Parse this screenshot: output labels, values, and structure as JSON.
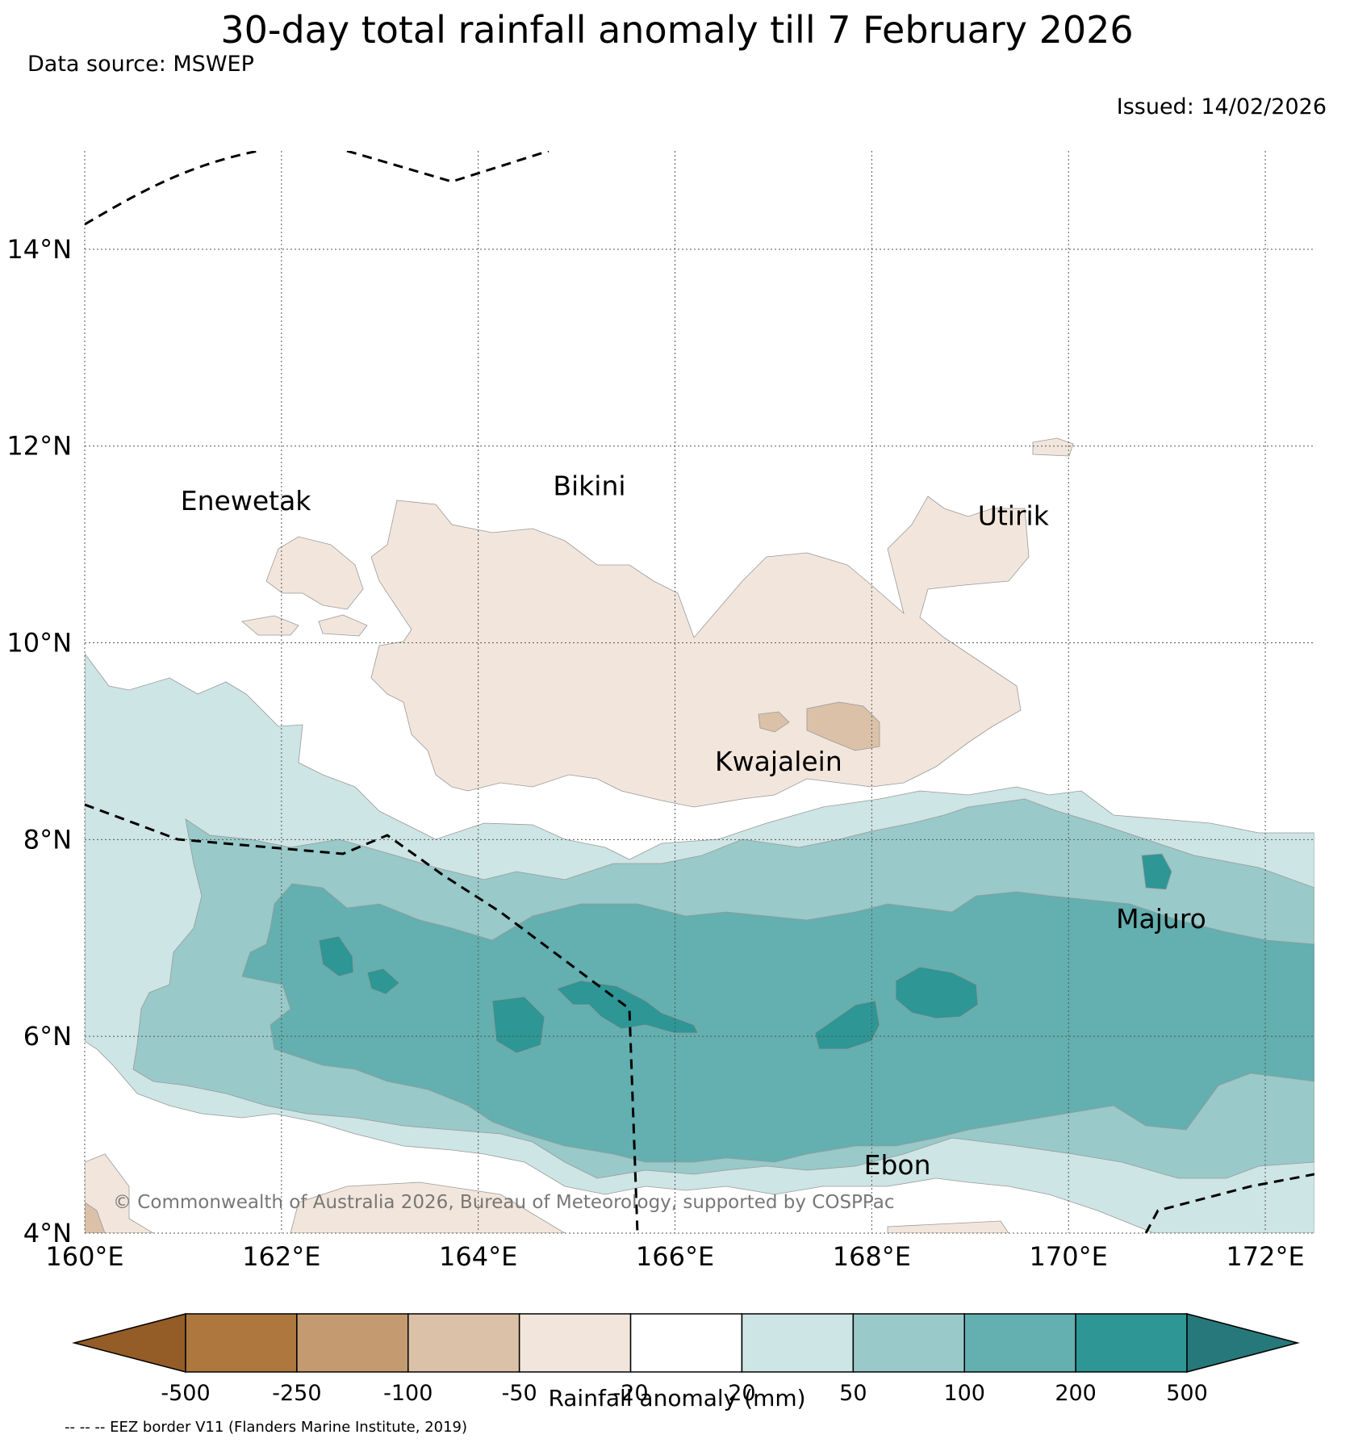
{
  "title": "30-day total rainfall anomaly till 7 February 2026",
  "source": "Data source: MSWEP",
  "issued": "Issued: 14/02/2026",
  "copyright": "© Commonwealth of Australia 2026, Bureau of Meteorology, supported by COSPPac",
  "footnote": "-- -- -- EEZ border V11 (Flanders Marine Institute, 2019)",
  "map": {
    "lon_range": [
      160,
      172.5
    ],
    "lat_range": [
      4,
      15
    ],
    "lon_ticks": [
      "160°E",
      "162°E",
      "164°E",
      "166°E",
      "168°E",
      "170°E",
      "172°E"
    ],
    "lat_ticks": [
      "4°N",
      "6°N",
      "8°N",
      "10°N",
      "12°N",
      "14°N"
    ],
    "grid": true,
    "places": [
      {
        "name": "Enewetak",
        "lon": 162.3,
        "lat": 11.35
      },
      {
        "name": "Bikini",
        "lon": 165.5,
        "lat": 11.5
      },
      {
        "name": "Utirik",
        "lon": 169.8,
        "lat": 11.2
      },
      {
        "name": "Kwajalein",
        "lon": 167.7,
        "lat": 8.7
      },
      {
        "name": "Majuro",
        "lon": 171.4,
        "lat": 7.1
      },
      {
        "name": "Ebon",
        "lon": 168.6,
        "lat": 4.6
      }
    ]
  },
  "colorbar": {
    "label": "Rainfall anomaly (mm)",
    "ticks": [
      "-500",
      "-250",
      "-100",
      "-50",
      "-20",
      "20",
      "50",
      "100",
      "200",
      "500"
    ],
    "colors": [
      "#945c26",
      "#ad773e",
      "#c49b70",
      "#dbc1a7",
      "#f2e6dc",
      "#ffffff",
      "#cde5e4",
      "#99c9c9",
      "#64afaf",
      "#2e9694",
      "#26787a"
    ]
  }
}
